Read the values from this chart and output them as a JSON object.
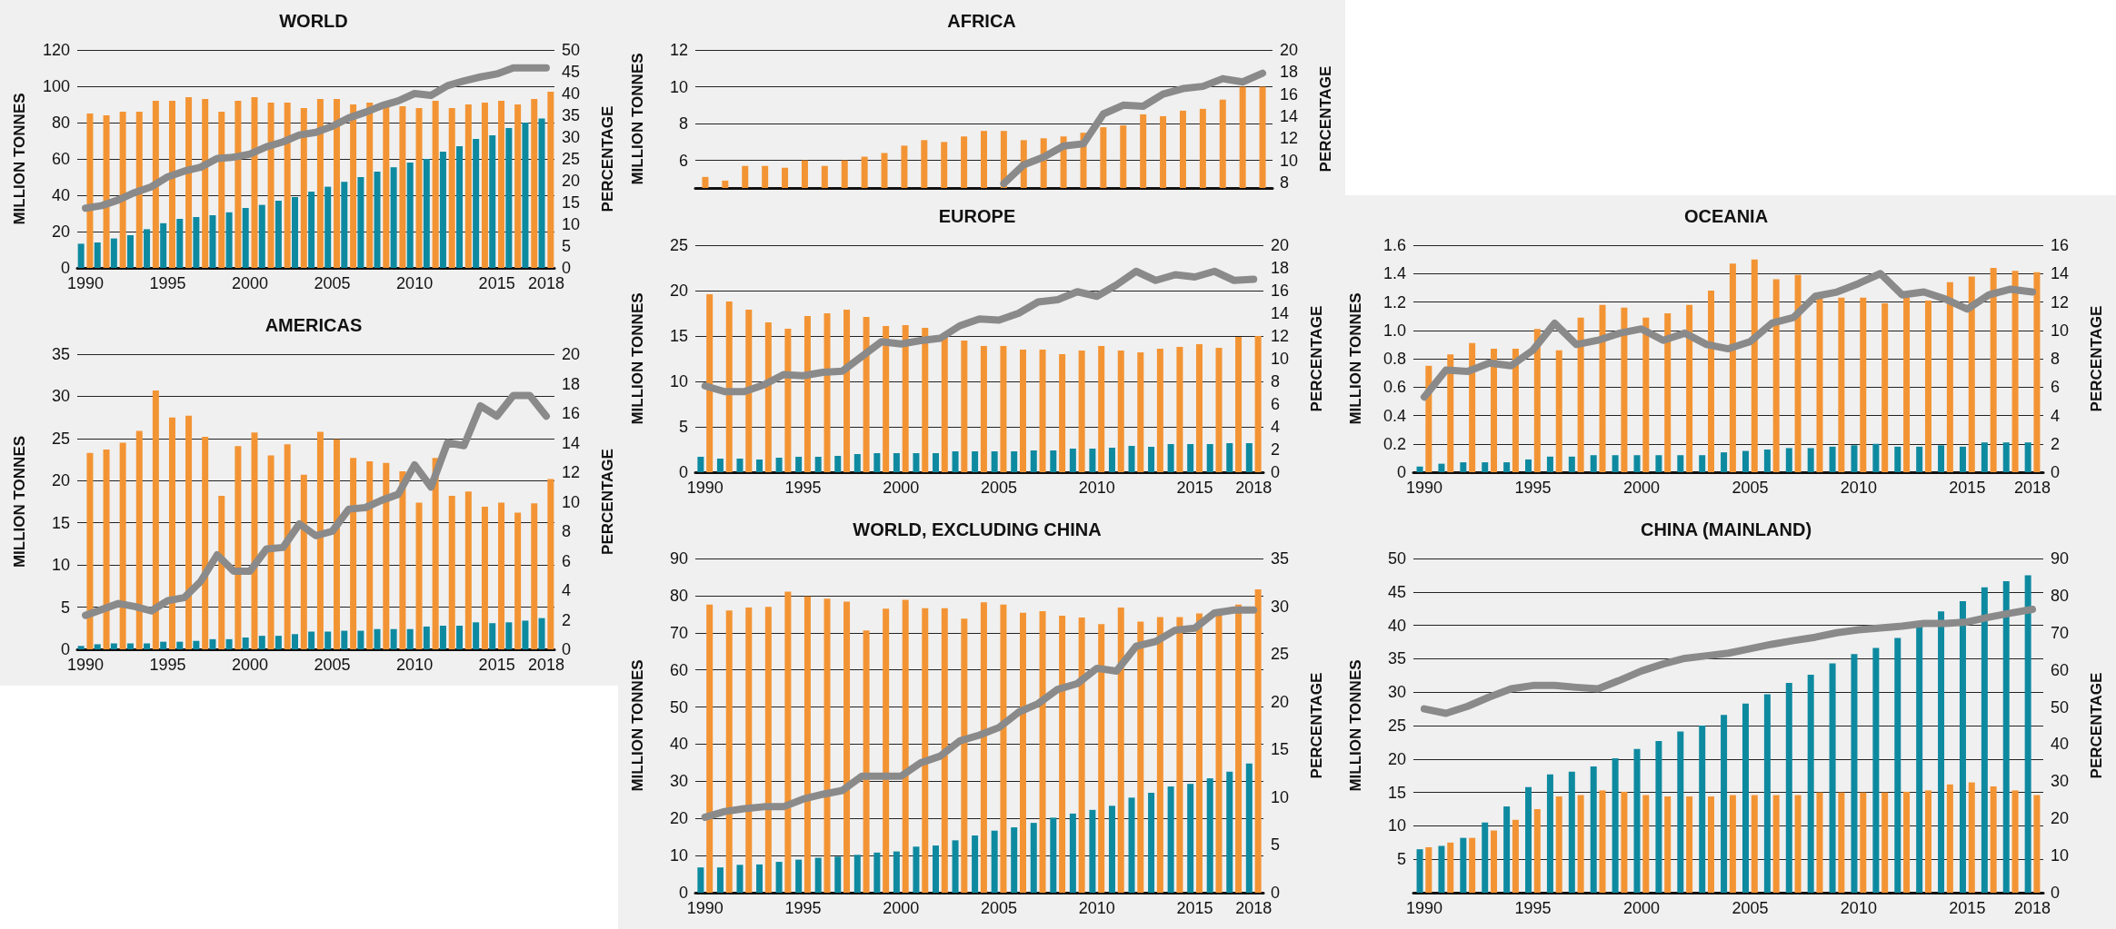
{
  "chart_data": [
    {
      "type": "bar",
      "title": "WORLD",
      "ylabel": "MILLION TONNES",
      "y2label": "PERCENTAGE",
      "categories": [
        "1990",
        null,
        null,
        null,
        null,
        "1995",
        null,
        null,
        null,
        null,
        "2000",
        null,
        null,
        null,
        null,
        "2005",
        null,
        null,
        null,
        null,
        "2010",
        null,
        null,
        null,
        null,
        "2015",
        null,
        null,
        "2018"
      ],
      "series": [
        {
          "color": "#0e8aa0",
          "values": [
            13.3,
            14,
            16.2,
            18,
            21.3,
            24.6,
            27,
            28,
            29,
            30.6,
            33,
            34.7,
            37,
            39,
            42,
            44.7,
            47.4,
            50,
            53,
            55.4,
            58,
            60,
            64,
            67,
            71,
            73,
            77,
            80,
            82.3
          ]
        },
        {
          "color": "#f39434",
          "values": [
            85,
            84,
            86,
            86,
            92,
            92,
            94,
            93,
            86,
            92,
            94,
            91,
            91,
            88,
            93,
            93,
            90,
            91,
            90,
            89,
            88,
            92,
            88,
            90,
            91,
            92,
            90,
            93,
            97
          ]
        },
        {
          "type": "line",
          "axis": "y2",
          "color": "#8a8a8a",
          "values": [
            13.7,
            14.3,
            15.6,
            17.3,
            18.6,
            20.9,
            22.2,
            23.1,
            25.1,
            25.4,
            26.1,
            27.8,
            28.9,
            30.5,
            31.1,
            32.5,
            34.4,
            35.7,
            37.2,
            38.3,
            40,
            39.6,
            41.8,
            42.9,
            43.8,
            44.5,
            45.9,
            45.9,
            45.9
          ]
        }
      ],
      "ylim": [
        0,
        120
      ],
      "yticks": [
        0,
        20,
        40,
        60,
        80,
        100,
        120
      ],
      "y2lim": [
        0,
        50
      ],
      "y2ticks": [
        0,
        5,
        10,
        15,
        20,
        25,
        30,
        35,
        40,
        45,
        50
      ],
      "grid": "y",
      "line_style": "solid"
    },
    {
      "type": "bar",
      "title": "AMERICAS",
      "ylabel": "MILLION TONNES",
      "y2label": "PERCENTAGE",
      "categories": [
        "1990",
        null,
        null,
        null,
        null,
        "1995",
        null,
        null,
        null,
        null,
        "2000",
        null,
        null,
        null,
        null,
        "2005",
        null,
        null,
        null,
        null,
        "2010",
        null,
        null,
        null,
        null,
        "2015",
        null,
        null,
        "2018"
      ],
      "series": [
        {
          "color": "#0e8aa0",
          "values": [
            0.4,
            0.6,
            0.7,
            0.7,
            0.7,
            0.9,
            0.9,
            1.0,
            1.2,
            1.2,
            1.4,
            1.6,
            1.6,
            1.8,
            2.1,
            2.1,
            2.2,
            2.2,
            2.4,
            2.4,
            2.4,
            2.7,
            2.8,
            2.8,
            3.2,
            3.1,
            3.2,
            3.4,
            3.7
          ]
        },
        {
          "color": "#f39434",
          "values": [
            23.3,
            23.7,
            24.5,
            25.9,
            30.7,
            27.5,
            27.7,
            25.2,
            18.2,
            24.1,
            25.7,
            23,
            24.3,
            20.7,
            25.8,
            24.9,
            22.7,
            22.3,
            22.1,
            21.1,
            17.4,
            22.7,
            18.2,
            18.7,
            16.9,
            17.4,
            16.2,
            17.3,
            20.2
          ]
        },
        {
          "type": "line",
          "axis": "y2",
          "color": "#8a8a8a",
          "values": [
            2.3,
            2.7,
            3.1,
            2.9,
            2.6,
            3.3,
            3.5,
            4.6,
            6.4,
            5.3,
            5.3,
            6.8,
            6.9,
            8.5,
            7.7,
            8.0,
            9.5,
            9.6,
            10.1,
            10.5,
            12.5,
            11.0,
            14.0,
            13.8,
            16.5,
            15.8,
            17.2,
            17.2,
            15.8
          ]
        }
      ],
      "ylim": [
        0,
        35
      ],
      "yticks": [
        0,
        5,
        10,
        15,
        20,
        25,
        30,
        35
      ],
      "y2lim": [
        0,
        20
      ],
      "y2ticks": [
        0,
        2,
        4,
        6,
        8,
        10,
        12,
        14,
        16,
        18,
        20
      ],
      "grid": "y",
      "line_style": "solid"
    },
    {
      "type": "bar",
      "title": "AFRICA",
      "ylabel": "MILLION TONNES",
      "y2label": "PERCENTAGE",
      "tick_labels": "y",
      "categories": [
        "1990",
        null,
        null,
        null,
        null,
        "1995",
        null,
        null,
        null,
        null,
        "2000",
        null,
        null,
        null,
        null,
        "2005",
        null,
        null,
        null,
        null,
        "2010",
        null,
        null,
        null,
        null,
        "2015",
        null,
        null,
        "2018"
      ],
      "series": [
        {
          "color": "#f39434",
          "values": [
            5.1,
            4.9,
            5.7,
            5.7,
            5.6,
            6.0,
            5.7,
            6.0,
            6.2,
            6.4,
            6.8,
            7.1,
            7.0,
            7.3,
            7.6,
            7.6,
            7.1,
            7.2,
            7.3,
            7.5,
            7.8,
            7.9,
            8.5,
            8.4,
            8.7,
            8.8,
            9.3,
            10.0,
            10.0
          ]
        },
        {
          "type": "line",
          "axis": "y2",
          "color": "#8a8a8a",
          "values": [
            null,
            null,
            null,
            null,
            null,
            null,
            null,
            null,
            null,
            null,
            null,
            null,
            null,
            null,
            null,
            7.9,
            9.6,
            10.3,
            11.3,
            11.5,
            14.2,
            15.0,
            14.9,
            16.0,
            16.5,
            16.7,
            17.4,
            17.1,
            17.9
          ]
        }
      ],
      "ylim": [
        4.5,
        12
      ],
      "yticks": [
        6,
        8,
        10,
        12
      ],
      "y2lim": [
        7.5,
        20
      ],
      "y2ticks": [
        8,
        10,
        12,
        14,
        16,
        18,
        20
      ],
      "grid": "y",
      "line_style": "solid"
    },
    {
      "type": "bar",
      "title": "EUROPE",
      "ylabel": "MILLION TONNES",
      "y2label": "PERCENTAGE",
      "categories": [
        "1990",
        null,
        null,
        null,
        null,
        "1995",
        null,
        null,
        null,
        null,
        "2000",
        null,
        null,
        null,
        null,
        "2005",
        null,
        null,
        null,
        null,
        "2010",
        null,
        null,
        null,
        null,
        "2015",
        null,
        null,
        "2018"
      ],
      "series": [
        {
          "color": "#0e8aa0",
          "values": [
            1.7,
            1.5,
            1.5,
            1.4,
            1.6,
            1.7,
            1.7,
            1.8,
            2.0,
            2.1,
            2.1,
            2.1,
            2.1,
            2.3,
            2.3,
            2.3,
            2.3,
            2.4,
            2.4,
            2.6,
            2.6,
            2.7,
            2.9,
            2.8,
            3.1,
            3.1,
            3.1,
            3.2,
            3.2
          ]
        },
        {
          "color": "#f39434",
          "values": [
            19.6,
            18.8,
            17.9,
            16.5,
            15.8,
            17.2,
            17.5,
            17.9,
            17.1,
            16.1,
            16.2,
            15.9,
            14.8,
            14.5,
            13.9,
            13.9,
            13.5,
            13.5,
            13.0,
            13.4,
            13.9,
            13.4,
            13.2,
            13.6,
            13.8,
            14.1,
            13.7,
            14.9,
            15.0
          ]
        },
        {
          "type": "line",
          "axis": "y2",
          "color": "#8a8a8a",
          "values": [
            7.6,
            7.1,
            7.1,
            7.7,
            8.6,
            8.5,
            8.8,
            8.9,
            10.2,
            11.5,
            11.3,
            11.6,
            11.8,
            12.9,
            13.5,
            13.4,
            14.0,
            15.0,
            15.2,
            15.9,
            15.5,
            16.5,
            17.7,
            16.9,
            17.4,
            17.2,
            17.7,
            16.9,
            17.0
          ]
        }
      ],
      "ylim": [
        0,
        25
      ],
      "yticks": [
        0,
        5,
        10,
        15,
        20,
        25
      ],
      "y2lim": [
        0,
        20
      ],
      "y2ticks": [
        0,
        2,
        4,
        6,
        8,
        10,
        12,
        14,
        16,
        18,
        20
      ],
      "grid": "y",
      "line_style": "solid"
    },
    {
      "type": "bar",
      "title": "WORLD, EXCLUDING CHINA",
      "ylabel": "MILLION TONNES",
      "y2label": "PERCENTAGE",
      "categories": [
        "1990",
        null,
        null,
        null,
        null,
        "1995",
        null,
        null,
        null,
        null,
        "2000",
        null,
        null,
        null,
        null,
        "2005",
        null,
        null,
        null,
        null,
        "2010",
        null,
        null,
        null,
        null,
        "2015",
        null,
        null,
        "2018"
      ],
      "series": [
        {
          "color": "#0e8aa0",
          "values": [
            6.8,
            6.8,
            7.5,
            7.6,
            8.3,
            8.9,
            9.4,
            9.7,
            10.2,
            10.8,
            11.1,
            12.4,
            12.7,
            14.1,
            15.4,
            16.7,
            17.6,
            18.8,
            20.2,
            21.3,
            22.3,
            23.4,
            25.6,
            26.9,
            28.6,
            29.3,
            30.8,
            32.6,
            34.8
          ]
        },
        {
          "color": "#f39434",
          "values": [
            77.6,
            76,
            76.8,
            77,
            81.1,
            79.8,
            79.2,
            78.4,
            70.6,
            76.5,
            78.9,
            76.6,
            76.6,
            73.8,
            78.2,
            77.6,
            75.4,
            75.8,
            74.6,
            74.1,
            72.3,
            76.8,
            73,
            74.2,
            74.2,
            75.2,
            75,
            77.6,
            81.7
          ]
        },
        {
          "type": "line",
          "axis": "y2",
          "color": "#8a8a8a",
          "values": [
            7.9,
            8.5,
            8.8,
            9.0,
            9.0,
            9.8,
            10.3,
            10.7,
            12.2,
            12.2,
            12.2,
            13.6,
            14.3,
            15.9,
            16.5,
            17.3,
            18.9,
            19.8,
            21.3,
            21.9,
            23.5,
            23.2,
            25.8,
            26.3,
            27.5,
            27.7,
            29.3,
            29.6,
            29.6
          ]
        }
      ],
      "ylim": [
        0,
        90
      ],
      "yticks": [
        0,
        10,
        20,
        30,
        40,
        50,
        60,
        70,
        80,
        90
      ],
      "y2lim": [
        0,
        35
      ],
      "y2ticks": [
        0,
        5,
        10,
        15,
        20,
        25,
        30,
        35
      ],
      "grid": "y",
      "line_style": "solid"
    },
    {
      "type": "bar",
      "title": "OCEANIA",
      "ylabel": "MILLION TONNES",
      "y2label": "PERCENTAGE",
      "categories": [
        "1990",
        null,
        null,
        null,
        null,
        "1995",
        null,
        null,
        null,
        null,
        "2000",
        null,
        null,
        null,
        null,
        "2005",
        null,
        null,
        null,
        null,
        "2010",
        null,
        null,
        null,
        null,
        "2015",
        null,
        null,
        "2018"
      ],
      "series": [
        {
          "color": "#0e8aa0",
          "values": [
            0.04,
            0.06,
            0.07,
            0.07,
            0.07,
            0.09,
            0.11,
            0.11,
            0.12,
            0.12,
            0.12,
            0.12,
            0.12,
            0.12,
            0.14,
            0.15,
            0.16,
            0.17,
            0.17,
            0.18,
            0.19,
            0.2,
            0.18,
            0.18,
            0.19,
            0.18,
            0.21,
            0.21,
            0.21
          ]
        },
        {
          "color": "#f39434",
          "values": [
            0.75,
            0.83,
            0.91,
            0.87,
            0.87,
            1.01,
            0.86,
            1.09,
            1.18,
            1.16,
            1.09,
            1.12,
            1.18,
            1.28,
            1.47,
            1.5,
            1.36,
            1.39,
            1.23,
            1.23,
            1.23,
            1.19,
            1.23,
            1.21,
            1.34,
            1.38,
            1.44,
            1.42,
            1.41
          ]
        },
        {
          "type": "line",
          "axis": "y2",
          "color": "#8a8a8a",
          "values": [
            5.3,
            7.2,
            7.1,
            7.7,
            7.5,
            8.6,
            10.5,
            9.0,
            9.3,
            9.8,
            10.1,
            9.3,
            9.8,
            9.0,
            8.7,
            9.2,
            10.5,
            10.9,
            12.4,
            12.7,
            13.3,
            14.0,
            12.5,
            12.7,
            12.2,
            11.5,
            12.5,
            12.9,
            12.7
          ]
        }
      ],
      "ylim": [
        0,
        1.6
      ],
      "yticks": [
        {
          "value": 0,
          "label": "0"
        },
        {
          "value": 0.2,
          "label": "0.2"
        },
        {
          "value": 0.4,
          "label": "0.4"
        },
        {
          "value": 0.6,
          "label": "0.6"
        },
        {
          "value": 0.8,
          "label": "0.8"
        },
        {
          "value": 1.0,
          "label": "1.0"
        },
        {
          "value": 1.2,
          "label": "1.2"
        },
        {
          "value": 1.4,
          "label": "1.4"
        },
        {
          "value": 1.6,
          "label": "1.6"
        }
      ],
      "y2lim": [
        0,
        16
      ],
      "y2ticks": [
        0,
        2,
        4,
        6,
        8,
        10,
        12,
        14,
        16
      ],
      "grid": "y",
      "line_style": "solid"
    },
    {
      "type": "bar",
      "title": "CHINA (MAINLAND)",
      "ylabel": "MILLION TONNES",
      "y2label": "PERCENTAGE",
      "categories": [
        "1990",
        null,
        null,
        null,
        null,
        "1995",
        null,
        null,
        null,
        null,
        "2000",
        null,
        null,
        null,
        null,
        "2005",
        null,
        null,
        null,
        null,
        "2010",
        null,
        null,
        null,
        null,
        "2015",
        null,
        null,
        "2018"
      ],
      "series": [
        {
          "color": "#0e8aa0",
          "values": [
            6.5,
            7.0,
            8.2,
            10.5,
            12.9,
            15.8,
            17.7,
            18.1,
            18.9,
            20.1,
            21.5,
            22.7,
            24.1,
            25.0,
            26.6,
            28.3,
            29.7,
            31.4,
            32.6,
            34.3,
            35.7,
            36.6,
            38.1,
            39.9,
            42.1,
            43.6,
            45.7,
            46.6,
            47.5
          ]
        },
        {
          "color": "#f39434",
          "values": [
            6.8,
            7.5,
            8.2,
            9.3,
            10.9,
            12.5,
            14.4,
            14.6,
            15.3,
            15.1,
            14.6,
            14.4,
            14.4,
            14.4,
            14.6,
            14.6,
            14.6,
            14.6,
            15.0,
            15.0,
            15.0,
            15.0,
            15.1,
            15.3,
            16.2,
            16.5,
            15.9,
            15.3,
            14.6
          ]
        },
        {
          "type": "line",
          "axis": "y2",
          "color": "#8a8a8a",
          "values": [
            49.5,
            48.3,
            50.2,
            52.7,
            54.9,
            55.8,
            55.8,
            55.3,
            54.9,
            57.2,
            59.7,
            61.6,
            63.1,
            63.8,
            64.5,
            65.7,
            66.9,
            67.9,
            68.8,
            70,
            70.8,
            71.3,
            71.8,
            72.5,
            72.5,
            72.9,
            74.2,
            75.3,
            76.3
          ]
        }
      ],
      "ylim": [
        0,
        50
      ],
      "yticks": [
        {
          "value": 0,
          "label": null
        },
        5,
        10,
        15,
        20,
        25,
        30,
        35,
        40,
        45,
        50
      ],
      "y2lim": [
        0,
        90
      ],
      "y2ticks": [
        0,
        10,
        20,
        30,
        40,
        50,
        60,
        70,
        80,
        90
      ],
      "grid": "y",
      "line_style": "solid"
    }
  ]
}
